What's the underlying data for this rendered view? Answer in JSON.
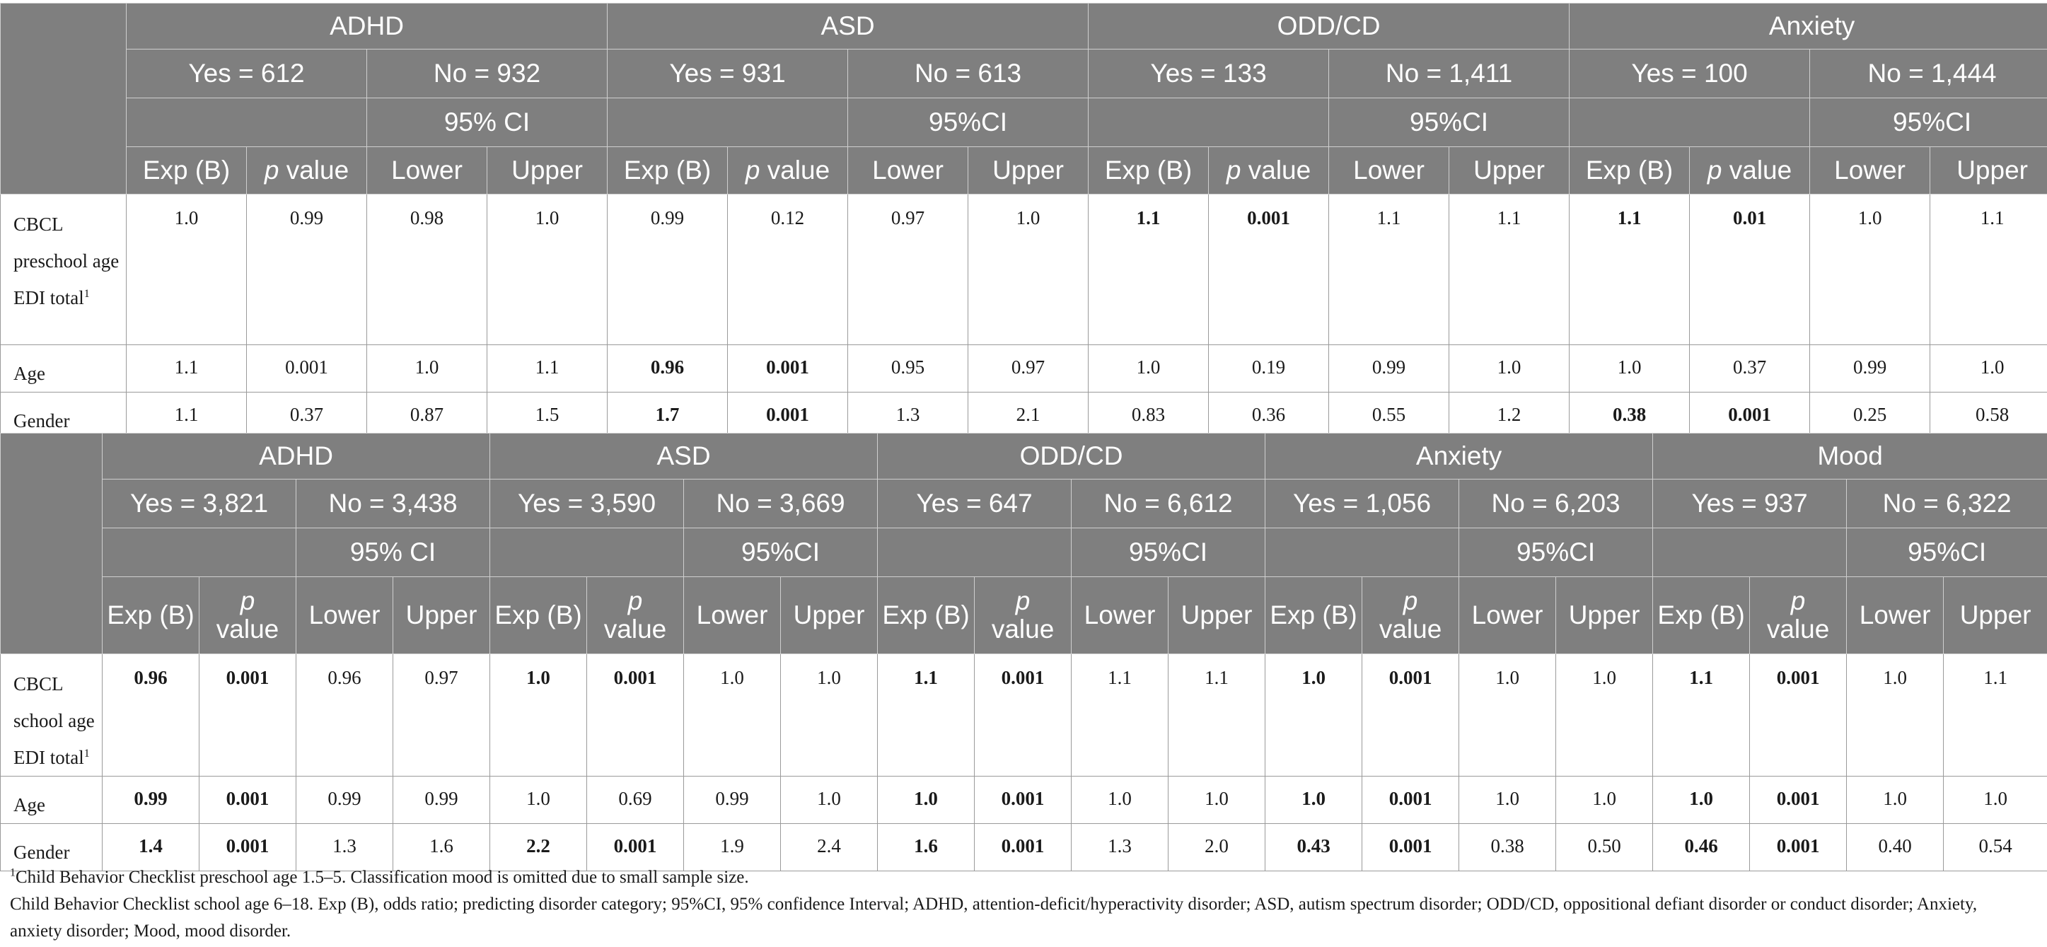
{
  "table1": {
    "groups": [
      {
        "name": "ADHD",
        "yes": "Yes = 612",
        "no": "No = 932",
        "ci": "95% CI"
      },
      {
        "name": "ASD",
        "yes": "Yes = 931",
        "no": "No = 613",
        "ci": "95%CI"
      },
      {
        "name": "ODD/CD",
        "yes": "Yes = 133",
        "no": "No = 1,411",
        "ci": "95%CI"
      },
      {
        "name": "Anxiety",
        "yes": "Yes = 100",
        "no": "No = 1,444",
        "ci": "95%CI"
      }
    ],
    "col_headers": {
      "exp": "Exp (B)",
      "p": "p",
      "value": " value",
      "lower": "Lower",
      "upper": "Upper"
    },
    "rows": [
      {
        "label": "CBCL preschool age EDI total",
        "sup": "1",
        "cells": [
          "1.0",
          "0.99",
          "0.98",
          "1.0",
          "0.99",
          "0.12",
          "0.97",
          "1.0",
          "1.1",
          "0.001",
          "1.1",
          "1.1",
          "1.1",
          "0.01",
          "1.0",
          "1.1"
        ],
        "bold": [
          false,
          false,
          false,
          false,
          false,
          false,
          false,
          false,
          true,
          true,
          false,
          false,
          true,
          true,
          false,
          false
        ]
      },
      {
        "label": "Age",
        "sup": "",
        "cells": [
          "1.1",
          "0.001",
          "1.0",
          "1.1",
          "0.96",
          "0.001",
          "0.95",
          "0.97",
          "1.0",
          "0.19",
          "0.99",
          "1.0",
          "1.0",
          "0.37",
          "0.99",
          "1.0"
        ],
        "bold": [
          false,
          false,
          false,
          false,
          true,
          true,
          false,
          false,
          false,
          false,
          false,
          false,
          false,
          false,
          false,
          false
        ]
      },
      {
        "label": "Gender",
        "sup": "",
        "cells": [
          "1.1",
          "0.37",
          "0.87",
          "1.5",
          "1.7",
          "0.001",
          "1.3",
          "2.1",
          "0.83",
          "0.36",
          "0.55",
          "1.2",
          "0.38",
          "0.001",
          "0.25",
          "0.58"
        ],
        "bold": [
          false,
          false,
          false,
          false,
          true,
          true,
          false,
          false,
          false,
          false,
          false,
          false,
          true,
          true,
          false,
          false
        ]
      }
    ]
  },
  "table2": {
    "groups": [
      {
        "name": "ADHD",
        "yes": "Yes = 3,821",
        "no": "No = 3,438",
        "ci": "95% CI"
      },
      {
        "name": "ASD",
        "yes": "Yes = 3,590",
        "no": "No = 3,669",
        "ci": "95%CI"
      },
      {
        "name": "ODD/CD",
        "yes": "Yes = 647",
        "no": "No = 6,612",
        "ci": "95%CI"
      },
      {
        "name": "Anxiety",
        "yes": "Yes = 1,056",
        "no": "No = 6,203",
        "ci": "95%CI"
      },
      {
        "name": "Mood",
        "yes": "Yes = 937",
        "no": "No = 6,322",
        "ci": "95%CI"
      }
    ],
    "col_headers": {
      "exp": "Exp (B)",
      "p": "p",
      "value": "value",
      "lower": "Lower",
      "upper": "Upper"
    },
    "rows": [
      {
        "label": "CBCL school age EDI total",
        "sup": "1",
        "cells": [
          "0.96",
          "0.001",
          "0.96",
          "0.97",
          "1.0",
          "0.001",
          "1.0",
          "1.0",
          "1.1",
          "0.001",
          "1.1",
          "1.1",
          "1.0",
          "0.001",
          "1.0",
          "1.0",
          "1.1",
          "0.001",
          "1.0",
          "1.1"
        ],
        "bold": [
          true,
          true,
          false,
          false,
          true,
          true,
          false,
          false,
          true,
          true,
          false,
          false,
          true,
          true,
          false,
          false,
          true,
          true,
          false,
          false
        ]
      },
      {
        "label": "Age",
        "sup": "",
        "cells": [
          "0.99",
          "0.001",
          "0.99",
          "0.99",
          "1.0",
          "0.69",
          "0.99",
          "1.0",
          "1.0",
          "0.001",
          "1.0",
          "1.0",
          "1.0",
          "0.001",
          "1.0",
          "1.0",
          "1.0",
          "0.001",
          "1.0",
          "1.0"
        ],
        "bold": [
          true,
          true,
          false,
          false,
          false,
          false,
          false,
          false,
          true,
          true,
          false,
          false,
          true,
          true,
          false,
          false,
          true,
          true,
          false,
          false
        ]
      },
      {
        "label": "Gender",
        "sup": "",
        "cells": [
          "1.4",
          "0.001",
          "1.3",
          "1.6",
          "2.2",
          "0.001",
          "1.9",
          "2.4",
          "1.6",
          "0.001",
          "1.3",
          "2.0",
          "0.43",
          "0.001",
          "0.38",
          "0.50",
          "0.46",
          "0.001",
          "0.40",
          "0.54"
        ],
        "bold": [
          true,
          true,
          false,
          false,
          true,
          true,
          false,
          false,
          true,
          true,
          false,
          false,
          true,
          true,
          false,
          false,
          true,
          true,
          false,
          false
        ]
      }
    ]
  },
  "notes": {
    "sup": "1",
    "line1": "Child Behavior Checklist preschool age 1.5–5. Classification mood is omitted due to small sample size.",
    "line2": "Child Behavior Checklist school age 6–18. Exp (B), odds ratio; predicting disorder category; 95%CI, 95% confidence Interval; ADHD, attention-deficit/hyperactivity disorder; ASD, autism spectrum disorder; ODD/CD, oppositional defiant disorder or conduct disorder; Anxiety, anxiety disorder; Mood, mood disorder."
  },
  "colors": {
    "header_bg": "#7f7f7f",
    "header_text": "#ffffff",
    "body_text": "#1a1a1a"
  }
}
